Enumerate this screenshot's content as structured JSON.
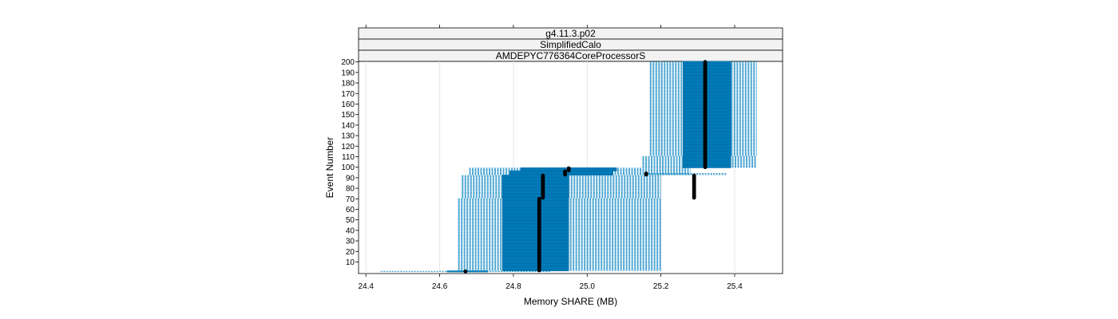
{
  "chart_data": {
    "type": "box",
    "orientation": "horizontal",
    "strips": [
      "g4.11.3.p02",
      "SimplifiedCalo",
      "AMDEPYC776364CoreProcessorS"
    ],
    "xlabel": "Memory SHARE (MB)",
    "ylabel": "Event Number",
    "xlim": [
      24.38,
      25.53
    ],
    "ylim": [
      0,
      200
    ],
    "x_ticks": [
      24.4,
      24.6,
      24.8,
      25.0,
      25.2,
      25.4
    ],
    "x_tick_labels": [
      "24.4",
      "24.6",
      "24.8",
      "25.0",
      "25.2",
      "25.4"
    ],
    "y_ticks": [
      10,
      20,
      30,
      40,
      50,
      60,
      70,
      80,
      90,
      100,
      110,
      120,
      130,
      140,
      150,
      160,
      170,
      180,
      190,
      200
    ],
    "y_tick_labels": [
      "10",
      "20",
      "30",
      "40",
      "50",
      "60",
      "70",
      "80",
      "90",
      "100",
      "110",
      "120",
      "130",
      "140",
      "150",
      "160",
      "170",
      "180",
      "190",
      "200"
    ],
    "x_grid": true,
    "colors": {
      "box": "#0080C0",
      "whisker": "#0080C0",
      "median": "#000000",
      "strip_bg": "#f2f2f2"
    },
    "segments": [
      {
        "events": [
          1,
          1
        ],
        "whisker_low": 24.44,
        "box_low": 24.62,
        "median": 24.67,
        "box_high": 24.73,
        "whisker_high": 24.9
      },
      {
        "events": [
          2,
          70
        ],
        "whisker_low": 24.65,
        "box_low": 24.77,
        "median": 24.87,
        "box_high": 24.95,
        "whisker_high": 25.2
      },
      {
        "events": [
          71,
          92
        ],
        "whisker_low": 24.66,
        "box_low": 24.77,
        "median": 24.88,
        "box_high": 24.95,
        "whisker_high": 25.2
      },
      {
        "events": [
          93,
          96
        ],
        "whisker_low": 24.68,
        "box_low": 24.79,
        "median": 24.94,
        "box_high": 25.07,
        "whisker_high": 25.28
      },
      {
        "events": [
          97,
          99
        ],
        "whisker_low": 24.68,
        "box_low": 24.82,
        "median": 24.95,
        "box_high": 25.08,
        "whisker_high": 25.28
      },
      {
        "events": [
          93,
          94
        ],
        "whisker_low": 25.16,
        "box_low": 25.16,
        "median": 25.16,
        "box_high": 25.16,
        "whisker_high": 25.38
      },
      {
        "events": [
          71,
          92
        ],
        "whisker_low": 25.29,
        "box_low": 25.29,
        "median": 25.29,
        "box_high": 25.29,
        "whisker_high": 25.29
      },
      {
        "events": [
          100,
          110
        ],
        "whisker_low": 25.15,
        "box_low": 25.26,
        "median": 25.32,
        "box_high": 25.39,
        "whisker_high": 25.46
      },
      {
        "events": [
          111,
          200
        ],
        "whisker_low": 25.17,
        "box_low": 25.26,
        "median": 25.32,
        "box_high": 25.39,
        "whisker_high": 25.46
      }
    ]
  }
}
